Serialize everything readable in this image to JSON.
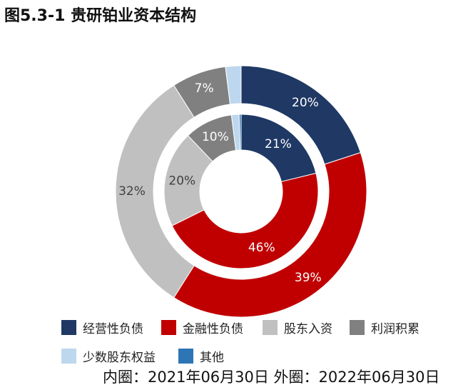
{
  "title": "图5.3-1 贵研铂业资本结构",
  "note": "内圈：2021年06月30日 外圈：2022年06月30日",
  "colors": {
    "经营性负债": "#1f3864",
    "金融性负债": "#c00000",
    "股东入资": "#c0c0c0",
    "利润积累": "#808080",
    "少数股东权益": "#bdd7ee",
    "其他": "#2e75b6"
  },
  "chart_data": {
    "type": "pie",
    "subtype": "nested-donut",
    "title": "图5.3-1 贵研铂业资本结构",
    "categories": [
      "经营性负债",
      "金融性负债",
      "股东入资",
      "利润积累",
      "少数股东权益",
      "其他"
    ],
    "series": [
      {
        "name": "内圈：2021年06月30日",
        "ring": "inner",
        "values": [
          21,
          46,
          20,
          10,
          1.6,
          0.4
        ],
        "labels": [
          "21%",
          "46%",
          "20%",
          "10%",
          "",
          ""
        ]
      },
      {
        "name": "外圈：2022年06月30日",
        "ring": "outer",
        "values": [
          20,
          39,
          32,
          7,
          2,
          0
        ],
        "labels": [
          "20%",
          "39%",
          "32%",
          "7%",
          "",
          ""
        ]
      }
    ],
    "legend_position": "bottom"
  },
  "legend": {
    "items": [
      "经营性负债",
      "金融性负债",
      "股东入资",
      "利润积累",
      "少数股东权益",
      "其他"
    ]
  }
}
